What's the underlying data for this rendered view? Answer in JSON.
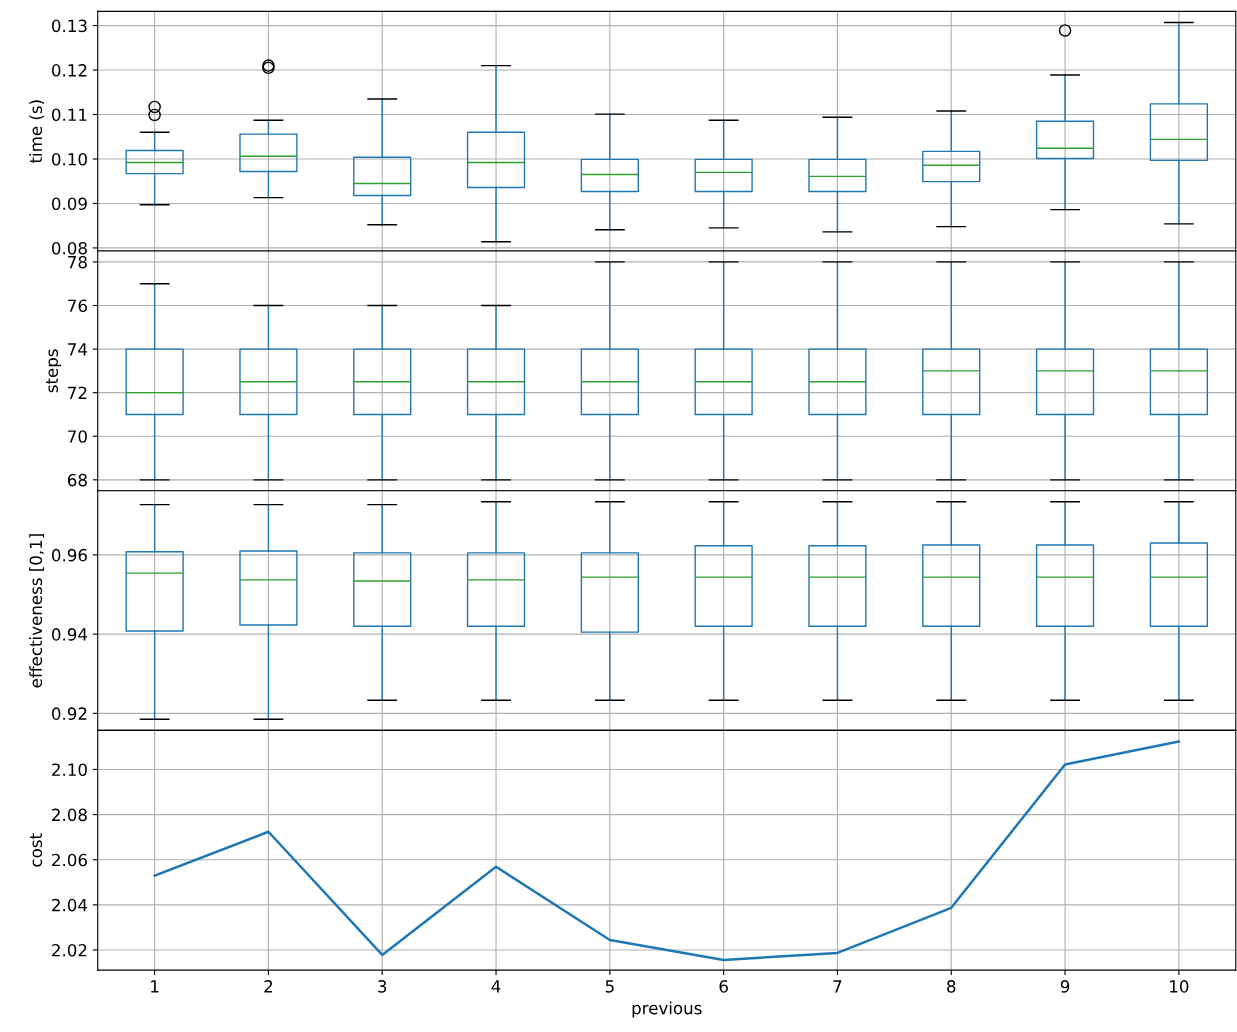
{
  "chart_data": [
    {
      "type": "box",
      "ylabel": "time (s)",
      "categories": [
        "1",
        "2",
        "3",
        "4",
        "5",
        "6",
        "7",
        "8",
        "9",
        "10"
      ],
      "color": "#1f77b4",
      "grid": true,
      "tick_labels": "y",
      "ylim": [
        0.0793,
        0.1332
      ],
      "yticks": [
        {
          "value": 0.08,
          "label": "0.08"
        },
        {
          "value": 0.09,
          "label": "0.09"
        },
        {
          "value": 0.1,
          "label": "0.10"
        },
        {
          "value": 0.11,
          "label": "0.11"
        },
        {
          "value": 0.12,
          "label": "0.12"
        },
        {
          "value": 0.13,
          "label": "0.13"
        }
      ],
      "boxes": [
        {
          "low": 0.0897,
          "q1": 0.0967,
          "median": 0.0992,
          "q3": 0.1019,
          "high": 0.106,
          "outliers": [
            0.1117,
            0.1099
          ]
        },
        {
          "low": 0.0913,
          "q1": 0.0972,
          "median": 0.1006,
          "q3": 0.1056,
          "high": 0.1087,
          "outliers": [
            0.121,
            0.1205
          ]
        },
        {
          "low": 0.0852,
          "q1": 0.0918,
          "median": 0.0945,
          "q3": 0.1004,
          "high": 0.1135
        },
        {
          "low": 0.0814,
          "q1": 0.0936,
          "median": 0.0992,
          "q3": 0.106,
          "high": 0.121
        },
        {
          "low": 0.0841,
          "q1": 0.0927,
          "median": 0.0965,
          "q3": 0.0999,
          "high": 0.1101
        },
        {
          "low": 0.0845,
          "q1": 0.0927,
          "median": 0.097,
          "q3": 0.0999,
          "high": 0.1087
        },
        {
          "low": 0.0836,
          "q1": 0.0927,
          "median": 0.0961,
          "q3": 0.0999,
          "high": 0.1094
        },
        {
          "low": 0.0848,
          "q1": 0.0949,
          "median": 0.0986,
          "q3": 0.1017,
          "high": 0.1108
        },
        {
          "low": 0.0886,
          "q1": 0.1001,
          "median": 0.1024,
          "q3": 0.1085,
          "high": 0.1189,
          "outliers": [
            0.1289
          ]
        },
        {
          "low": 0.0854,
          "q1": 0.0997,
          "median": 0.1044,
          "q3": 0.1124,
          "high": 0.1307
        }
      ]
    },
    {
      "type": "box",
      "ylabel": "steps",
      "categories": [
        "1",
        "2",
        "3",
        "4",
        "5",
        "6",
        "7",
        "8",
        "9",
        "10"
      ],
      "color": "#1f77b4",
      "grid": true,
      "tick_labels": "y",
      "ylim": [
        67.5,
        78.5
      ],
      "yticks": [
        68,
        70,
        72,
        74,
        76,
        78
      ],
      "boxes": [
        {
          "low": 68,
          "q1": 71,
          "median": 72,
          "q3": 74,
          "high": 77
        },
        {
          "low": 68,
          "q1": 71,
          "median": 72.5,
          "q3": 74,
          "high": 76
        },
        {
          "low": 68,
          "q1": 71,
          "median": 72.5,
          "q3": 74,
          "high": 76
        },
        {
          "low": 68,
          "q1": 71,
          "median": 72.5,
          "q3": 74,
          "high": 76
        },
        {
          "low": 68,
          "q1": 71,
          "median": 72.5,
          "q3": 74,
          "high": 78
        },
        {
          "low": 68,
          "q1": 71,
          "median": 72.5,
          "q3": 74,
          "high": 78
        },
        {
          "low": 68,
          "q1": 71,
          "median": 72.5,
          "q3": 74,
          "high": 78
        },
        {
          "low": 68,
          "q1": 71,
          "median": 73,
          "q3": 74,
          "high": 78
        },
        {
          "low": 68,
          "q1": 71,
          "median": 73,
          "q3": 74,
          "high": 78
        },
        {
          "low": 68,
          "q1": 71,
          "median": 73,
          "q3": 74,
          "high": 78
        }
      ]
    },
    {
      "type": "box",
      "ylabel": "effectiveness [0,1]",
      "categories": [
        "1",
        "2",
        "3",
        "4",
        "5",
        "6",
        "7",
        "8",
        "9",
        "10"
      ],
      "color": "#1f77b4",
      "grid": true,
      "tick_labels": "y",
      "ylim": [
        0.9157,
        0.9762
      ],
      "yticks": [
        0.92,
        0.94,
        0.96
      ],
      "boxes": [
        {
          "low": 0.9185,
          "q1": 0.9408,
          "median": 0.9554,
          "q3": 0.9608,
          "high": 0.9727
        },
        {
          "low": 0.9185,
          "q1": 0.9423,
          "median": 0.9537,
          "q3": 0.961,
          "high": 0.9727
        },
        {
          "low": 0.9233,
          "q1": 0.942,
          "median": 0.9534,
          "q3": 0.9605,
          "high": 0.9727
        },
        {
          "low": 0.9233,
          "q1": 0.942,
          "median": 0.9537,
          "q3": 0.9605,
          "high": 0.9734
        },
        {
          "low": 0.9233,
          "q1": 0.9405,
          "median": 0.9544,
          "q3": 0.9605,
          "high": 0.9734
        },
        {
          "low": 0.9233,
          "q1": 0.942,
          "median": 0.9544,
          "q3": 0.9623,
          "high": 0.9734
        },
        {
          "low": 0.9233,
          "q1": 0.942,
          "median": 0.9544,
          "q3": 0.9623,
          "high": 0.9734
        },
        {
          "low": 0.9233,
          "q1": 0.942,
          "median": 0.9544,
          "q3": 0.9625,
          "high": 0.9734
        },
        {
          "low": 0.9233,
          "q1": 0.942,
          "median": 0.9544,
          "q3": 0.9625,
          "high": 0.9734
        },
        {
          "low": 0.9233,
          "q1": 0.942,
          "median": 0.9544,
          "q3": 0.963,
          "high": 0.9734
        }
      ]
    },
    {
      "type": "line",
      "ylabel": "cost",
      "xlabel": "previous",
      "categories": [
        "1",
        "2",
        "3",
        "4",
        "5",
        "6",
        "7",
        "8",
        "9",
        "10"
      ],
      "color": "#1f77b4",
      "grid": true,
      "ylim": [
        2.0111,
        2.1173
      ],
      "yticks": [
        {
          "value": 2.02,
          "label": "2.02"
        },
        {
          "value": 2.04,
          "label": "2.04"
        },
        {
          "value": 2.06,
          "label": "2.06"
        },
        {
          "value": 2.08,
          "label": "2.08"
        },
        {
          "value": 2.1,
          "label": "2.10"
        }
      ],
      "values": [
        2.0529,
        2.0724,
        2.0178,
        2.0569,
        2.0244,
        2.0156,
        2.0187,
        2.0387,
        2.1022,
        2.1124
      ]
    }
  ]
}
